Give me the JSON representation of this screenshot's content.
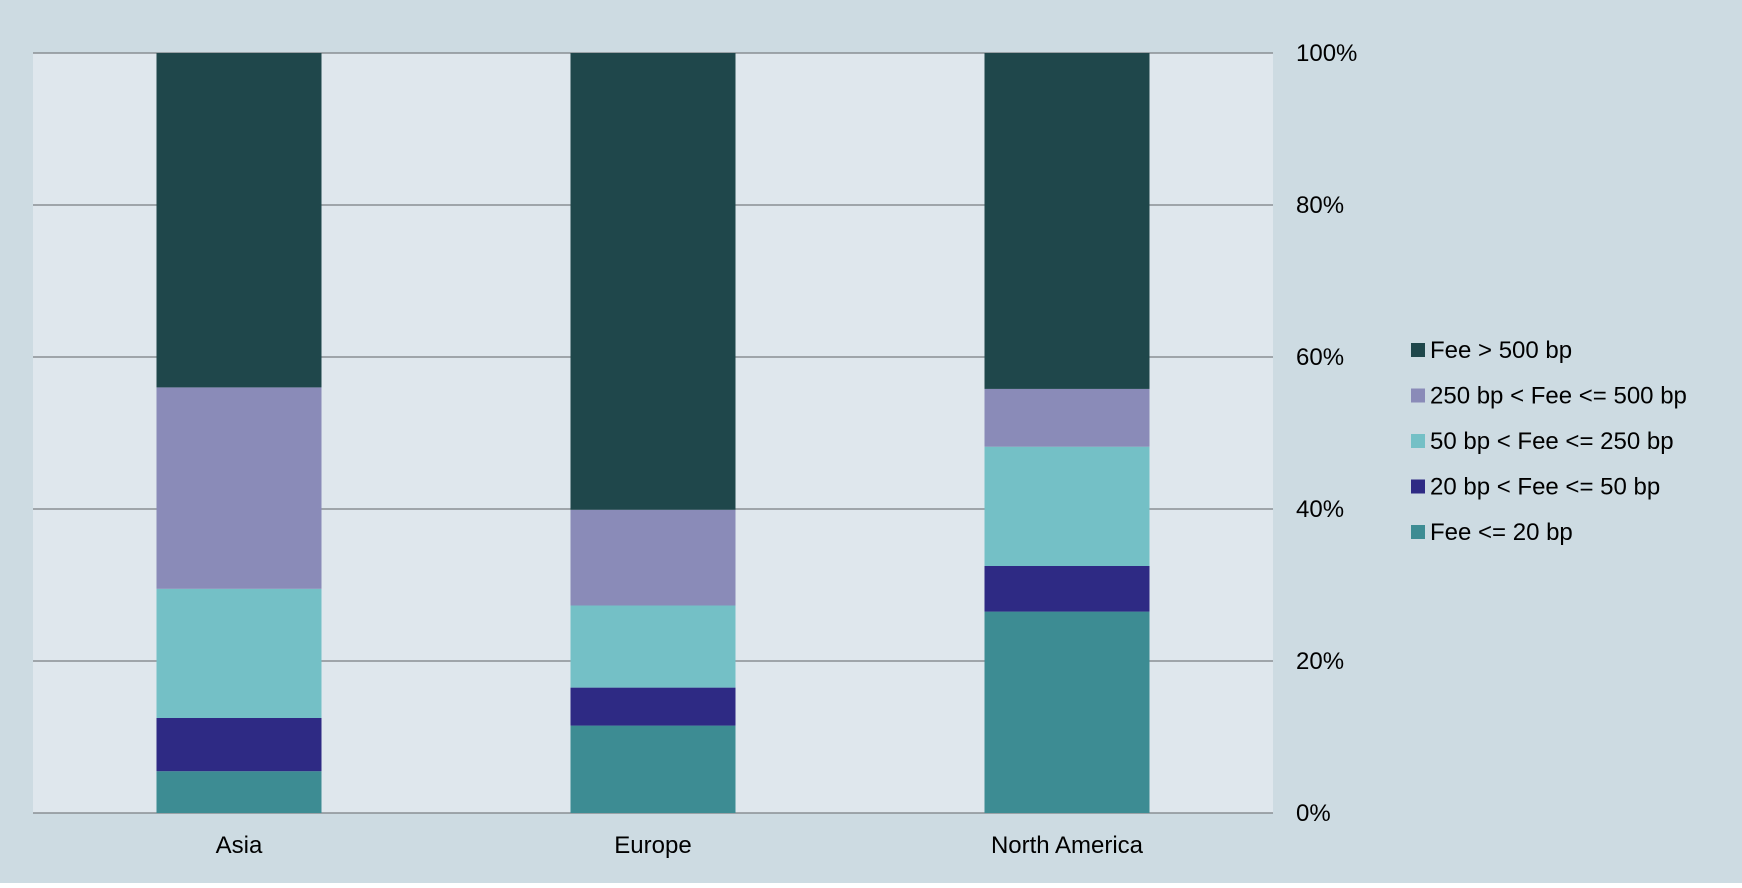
{
  "colors": {
    "outer_background": "#cddbe2",
    "plot_background": "#dfe7ed",
    "gridline": "#8a8f93",
    "text": "#000000"
  },
  "chart_data": {
    "type": "bar",
    "stacked": true,
    "normalized_percent": true,
    "categories": [
      "Asia",
      "Europe",
      "North America"
    ],
    "series": [
      {
        "name": "Fee <= 20 bp",
        "color": "#3d8c93",
        "values": [
          5.5,
          11.5,
          26.5
        ]
      },
      {
        "name": "20 bp < Fee <= 50 bp",
        "color": "#2e2a84",
        "values": [
          7,
          5,
          6
        ]
      },
      {
        "name": "50 bp < Fee <= 250 bp",
        "color": "#74c0c6",
        "values": [
          17,
          10.8,
          15.7
        ]
      },
      {
        "name": "250 bp < Fee <= 500 bp",
        "color": "#8a8bb8",
        "values": [
          26.5,
          12.6,
          7.6
        ]
      },
      {
        "name": "Fee > 500 bp",
        "color": "#1f474b",
        "values": [
          44,
          60.1,
          44.2
        ]
      }
    ],
    "ylim": [
      0,
      100
    ],
    "y_ticks": [
      "0%",
      "20%",
      "40%",
      "60%",
      "80%",
      "100%"
    ],
    "y_axis_side": "right",
    "grid": true,
    "legend_position": "right",
    "legend_order": [
      "Fee > 500 bp",
      "250 bp < Fee <= 500 bp",
      "50 bp < Fee <= 250 bp",
      "20 bp < Fee <= 50 bp",
      "Fee <= 20 bp"
    ]
  }
}
